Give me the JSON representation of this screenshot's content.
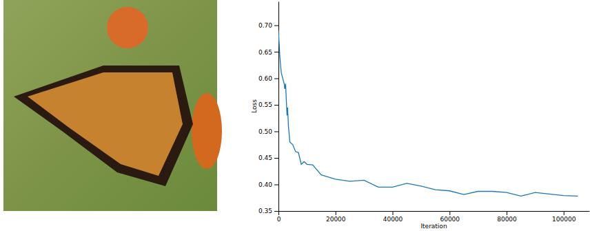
{
  "chart_data": {
    "type": "line",
    "x_label": "Iteration",
    "y_label": "Loss",
    "color": "#1f77b4",
    "x": [
      0,
      500,
      1000,
      1500,
      2000,
      2200,
      2500,
      3000,
      3200,
      3500,
      4000,
      5000,
      6000,
      7000,
      8000,
      9000,
      10000,
      12000,
      15000,
      20000,
      25000,
      30000,
      35000,
      40000,
      45000,
      50000,
      55000,
      60000,
      65000,
      70000,
      75000,
      80000,
      85000,
      90000,
      95000,
      100000,
      105000
    ],
    "values": [
      0.69,
      0.64,
      0.61,
      0.6,
      0.59,
      0.58,
      0.59,
      0.53,
      0.545,
      0.51,
      0.48,
      0.475,
      0.462,
      0.46,
      0.438,
      0.443,
      0.438,
      0.437,
      0.418,
      0.41,
      0.406,
      0.408,
      0.395,
      0.395,
      0.402,
      0.397,
      0.39,
      0.388,
      0.381,
      0.387,
      0.387,
      0.385,
      0.378,
      0.385,
      0.382,
      0.379,
      0.378
    ],
    "xlim": [
      0,
      109000
    ],
    "xticks": [
      0,
      20000,
      40000,
      60000,
      80000,
      100000
    ],
    "ylim": [
      0.35,
      0.745
    ],
    "yticks": [
      0.35,
      {
        "value": 0.4,
        "label": "0.40"
      },
      0.45,
      {
        "value": 0.5,
        "label": "0.50"
      },
      0.55,
      {
        "value": 0.6,
        "label": "0.60"
      },
      0.65,
      {
        "value": 0.7,
        "label": "0.70"
      }
    ]
  }
}
